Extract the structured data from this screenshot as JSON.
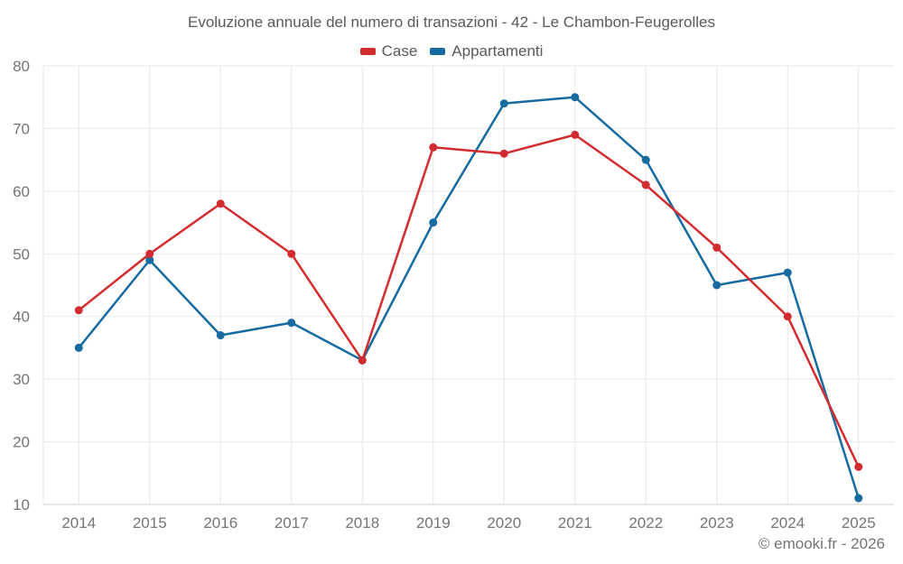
{
  "footer": "© emooki.fr - 2026",
  "chart_data": {
    "type": "line",
    "title": "Evoluzione annuale del numero di transazioni - 42 - Le Chambon-Feugerolles",
    "categories": [
      "2014",
      "2015",
      "2016",
      "2017",
      "2018",
      "2019",
      "2020",
      "2021",
      "2022",
      "2023",
      "2024",
      "2025"
    ],
    "series": [
      {
        "name": "Case",
        "color": "#d32c30",
        "values": [
          41,
          50,
          58,
          50,
          33,
          67,
          66,
          69,
          61,
          51,
          40,
          16
        ]
      },
      {
        "name": "Appartamenti",
        "color": "#176ba0",
        "values": [
          35,
          49,
          37,
          39,
          33,
          55,
          74,
          75,
          65,
          45,
          47,
          11
        ]
      }
    ],
    "xlabel": "",
    "ylabel": "",
    "ylim": [
      10,
      80
    ],
    "yticks": [
      10,
      20,
      30,
      40,
      50,
      60,
      70,
      80
    ],
    "grid": true,
    "legend_position": "top",
    "grid_color": "#e7e7e7",
    "axis_color": "#cfcfcf",
    "tick_text_color": "#757575"
  }
}
